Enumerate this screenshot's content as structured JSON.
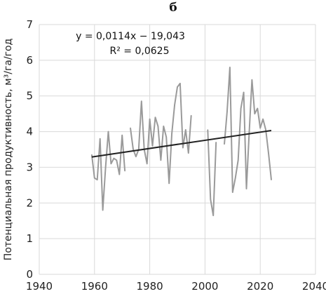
{
  "chart_data": {
    "type": "line",
    "title": "б",
    "xlabel": "",
    "ylabel": "Потенциальная продуктивность, м³/га/год",
    "xlim": [
      1940,
      2040
    ],
    "ylim": [
      0,
      7
    ],
    "xticks": [
      "1940",
      "1960",
      "1980",
      "2000",
      "2020",
      "2040"
    ],
    "yticks": [
      "0",
      "1",
      "2",
      "3",
      "4",
      "5",
      "6",
      "7"
    ],
    "grid": true,
    "annotations": [
      "y = 0,0114x − 19,043",
      "R² = 0,0625"
    ],
    "series": [
      {
        "color": "#9a9a9a",
        "points": [
          [
            1959,
            3.35
          ],
          [
            1960,
            2.7
          ],
          [
            1961,
            2.65
          ],
          [
            1962,
            3.8
          ],
          [
            1963,
            1.8
          ],
          [
            1964,
            3.0
          ],
          [
            1965,
            4.0
          ],
          [
            1966,
            3.1
          ],
          [
            1967,
            3.25
          ],
          [
            1968,
            3.2
          ],
          [
            1969,
            2.8
          ],
          [
            1970,
            3.9
          ],
          [
            1971,
            2.9
          ],
          [
            1972,
            null
          ],
          [
            1973,
            4.1
          ],
          [
            1974,
            3.5
          ],
          [
            1975,
            3.3
          ],
          [
            1976,
            3.5
          ],
          [
            1977,
            4.85
          ],
          [
            1978,
            3.5
          ],
          [
            1979,
            3.1
          ],
          [
            1980,
            4.35
          ],
          [
            1981,
            3.6
          ],
          [
            1982,
            4.4
          ],
          [
            1983,
            4.15
          ],
          [
            1984,
            3.2
          ],
          [
            1985,
            4.15
          ],
          [
            1986,
            3.85
          ],
          [
            1987,
            2.55
          ],
          [
            1988,
            3.95
          ],
          [
            1989,
            4.75
          ],
          [
            1990,
            5.25
          ],
          [
            1991,
            5.35
          ],
          [
            1992,
            3.55
          ],
          [
            1993,
            4.05
          ],
          [
            1994,
            3.4
          ],
          [
            1995,
            4.45
          ],
          [
            1996,
            null
          ],
          [
            1997,
            null
          ],
          [
            1998,
            null
          ],
          [
            1999,
            null
          ],
          [
            2000,
            null
          ],
          [
            2001,
            4.05
          ],
          [
            2002,
            2.1
          ],
          [
            2003,
            1.65
          ],
          [
            2004,
            3.7
          ],
          [
            2005,
            null
          ],
          [
            2006,
            null
          ],
          [
            2007,
            3.65
          ],
          [
            2008,
            4.55
          ],
          [
            2009,
            5.8
          ],
          [
            2010,
            2.3
          ],
          [
            2011,
            2.7
          ],
          [
            2012,
            3.2
          ],
          [
            2013,
            4.65
          ],
          [
            2014,
            5.1
          ],
          [
            2015,
            2.4
          ],
          [
            2016,
            3.95
          ],
          [
            2017,
            5.45
          ],
          [
            2018,
            4.5
          ],
          [
            2019,
            4.65
          ],
          [
            2020,
            4.1
          ],
          [
            2021,
            4.35
          ],
          [
            2022,
            4.05
          ],
          [
            2023,
            3.4
          ],
          [
            2024,
            2.65
          ]
        ]
      }
    ],
    "trendline": {
      "slope": 0.0114,
      "intercept": -19.043,
      "x_range": [
        1959,
        2024
      ],
      "color": "#222222"
    }
  }
}
